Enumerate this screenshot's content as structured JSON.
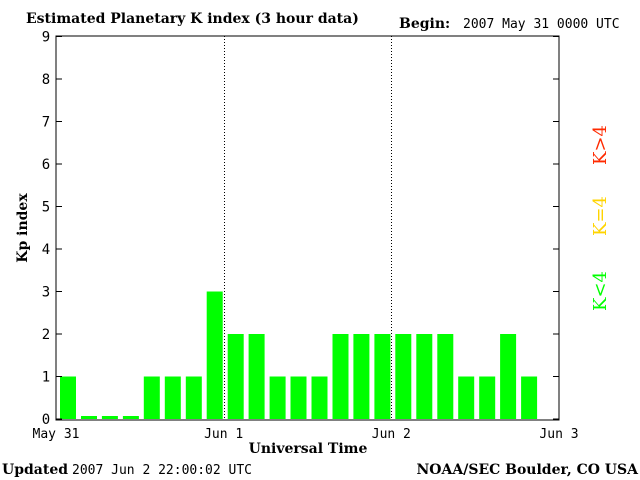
{
  "header": {
    "title": "Estimated Planetary K index (3 hour data)",
    "begin_label": "Begin:",
    "begin_value": "2007 May 31 0000 UTC"
  },
  "footer": {
    "updated_label": "Updated",
    "updated_value": "2007 Jun  2 22:00:02 UTC",
    "source": "NOAA/SEC Boulder, CO USA"
  },
  "legend": [
    {
      "label": "K>4",
      "color": "#ff2a00"
    },
    {
      "label": "K=4",
      "color": "#ffd400"
    },
    {
      "label": "K<4",
      "color": "#00ff00"
    }
  ],
  "chart_data": {
    "type": "bar",
    "title": "Estimated Planetary K index (3 hour data)",
    "xlabel": "Universal Time",
    "ylabel": "Kp index",
    "ylim": [
      0,
      9
    ],
    "yticks": [
      "0",
      "1",
      "2",
      "3",
      "4",
      "5",
      "6",
      "7",
      "8",
      "9"
    ],
    "xticks": [
      "May 31",
      "Jun 1",
      "Jun 2",
      "Jun 3"
    ],
    "values": [
      1,
      0,
      0,
      0,
      1,
      1,
      1,
      3,
      2,
      2,
      1,
      1,
      1,
      2,
      2,
      2,
      2,
      2,
      2,
      1,
      1,
      2,
      1
    ],
    "bar_color": "#00ff00",
    "grid": false
  }
}
